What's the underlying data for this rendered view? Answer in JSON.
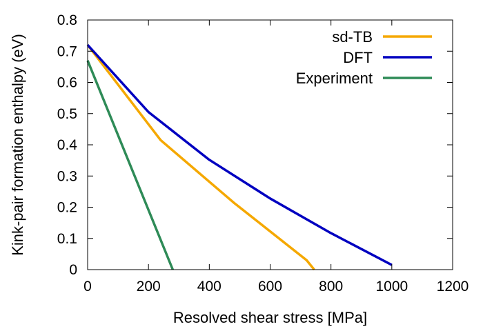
{
  "chart_data": {
    "type": "line",
    "xlabel": "Resolved shear stress [MPa]",
    "ylabel": "Kink-pair formation enthalpy (eV)",
    "xlim": [
      0,
      1200
    ],
    "ylim": [
      0,
      0.8
    ],
    "xticks": [
      0,
      200,
      400,
      600,
      800,
      1000,
      1200
    ],
    "yticks": [
      0,
      0.1,
      0.2,
      0.3,
      0.4,
      0.5,
      0.6,
      0.7,
      0.8
    ],
    "xtick_labels": [
      "0",
      "200",
      "400",
      "600",
      "800",
      "1000",
      "1200"
    ],
    "ytick_labels": [
      "0",
      "0.1",
      "0.2",
      "0.3",
      "0.4",
      "0.5",
      "0.6",
      "0.7",
      "0.8"
    ],
    "grid": false,
    "legend_position": "top-right",
    "series": [
      {
        "name": "sd-TB",
        "color": "#f5a800",
        "x": [
          0,
          240,
          480,
          720,
          745
        ],
        "y": [
          0.72,
          0.415,
          0.215,
          0.03,
          0
        ]
      },
      {
        "name": "DFT",
        "color": "#0000c0",
        "x": [
          0,
          200,
          400,
          600,
          800,
          1000
        ],
        "y": [
          0.72,
          0.505,
          0.352,
          0.228,
          0.117,
          0.015
        ]
      },
      {
        "name": "Experiment",
        "color": "#2e8b57",
        "x": [
          0,
          280
        ],
        "y": [
          0.67,
          0
        ]
      }
    ]
  }
}
